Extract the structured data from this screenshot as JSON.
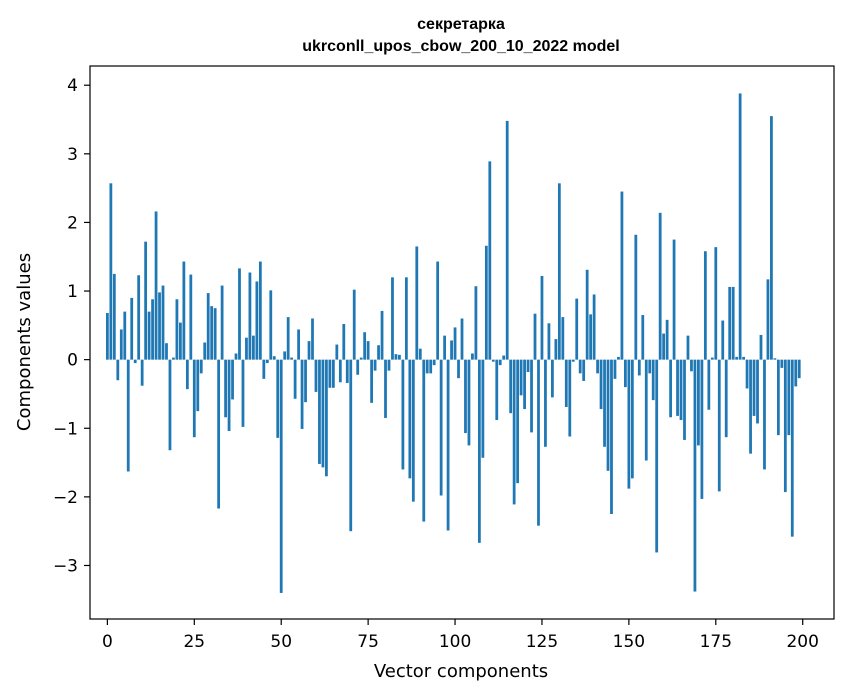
{
  "chart_data": {
    "type": "bar",
    "title": "секретарка",
    "subtitle": "ukrconll_upos_cbow_200_10_2022 model",
    "xlabel": "Vector components",
    "ylabel": "Components values",
    "xlim": [
      -5,
      209
    ],
    "ylim": [
      -3.78,
      4.28
    ],
    "xticks": [
      0,
      25,
      50,
      75,
      100,
      125,
      150,
      175,
      200
    ],
    "yticks": [
      -3,
      -2,
      -1,
      0,
      1,
      2,
      3,
      4
    ],
    "ytick_labels": [
      "−3",
      "−2",
      "−1",
      "0",
      "1",
      "2",
      "3",
      "4"
    ],
    "bar_color": "#1f77b4",
    "values": [
      0.68,
      2.57,
      1.25,
      -0.3,
      0.44,
      0.7,
      -1.63,
      0.9,
      -0.05,
      1.23,
      -0.38,
      1.72,
      0.7,
      0.88,
      2.16,
      0.98,
      1.08,
      0.24,
      -1.32,
      0.03,
      0.88,
      0.54,
      1.43,
      -0.43,
      1.24,
      -1.13,
      -0.75,
      -0.2,
      0.25,
      0.97,
      0.78,
      0.75,
      -2.17,
      1.08,
      -0.84,
      -1.04,
      -0.58,
      0.09,
      1.33,
      -0.98,
      0.32,
      1.27,
      0.35,
      1.14,
      1.43,
      -0.28,
      -0.05,
      1.01,
      0.05,
      -1.14,
      -3.4,
      0.12,
      0.62,
      0.03,
      -0.57,
      0.44,
      -1.01,
      -0.62,
      0.27,
      0.6,
      -0.47,
      -1.52,
      -1.57,
      -1.7,
      -0.41,
      -0.41,
      0.22,
      -0.33,
      0.52,
      -0.34,
      -2.5,
      1.02,
      -0.22,
      0.03,
      0.4,
      0.27,
      -0.63,
      -0.16,
      0.21,
      0.71,
      -0.85,
      -0.16,
      1.2,
      0.08,
      0.07,
      -1.6,
      1.2,
      -1.73,
      -2.07,
      1.65,
      0.16,
      -2.36,
      -0.2,
      -0.2,
      -0.08,
      1.43,
      -1.98,
      0.35,
      -2.49,
      0.28,
      0.47,
      -0.27,
      0.6,
      -1.07,
      -1.25,
      0.09,
      1.07,
      -2.67,
      -1.43,
      1.66,
      2.89,
      -0.03,
      -0.88,
      -0.08,
      0.06,
      3.48,
      -0.78,
      -2.11,
      -1.8,
      -0.52,
      -0.72,
      -0.18,
      -1.06,
      0.67,
      -2.42,
      1.22,
      -1.27,
      0.53,
      -0.55,
      0.3,
      2.57,
      0.62,
      -0.69,
      -1.12,
      -0.03,
      0.89,
      -0.2,
      -0.31,
      1.31,
      0.66,
      0.95,
      -0.2,
      -0.72,
      -1.27,
      -1.62,
      -2.25,
      -0.28,
      0.04,
      2.45,
      -0.4,
      -1.88,
      -1.73,
      1.82,
      -0.23,
      0.65,
      -1.47,
      -0.2,
      -0.59,
      -2.81,
      2.14,
      0.38,
      0.58,
      -0.84,
      1.75,
      -0.82,
      -0.88,
      -1.17,
      0.35,
      -0.17,
      -3.38,
      -1.25,
      -2.03,
      1.58,
      -0.73,
      0.03,
      1.64,
      -1.92,
      0.57,
      -1.13,
      1.06,
      1.06,
      0.04,
      3.88,
      0.04,
      -0.42,
      -1.37,
      -0.82,
      -0.93,
      0.36,
      -1.6,
      1.17,
      3.55,
      0.02,
      -1.1,
      -0.12,
      -1.93,
      -1.1,
      -2.58,
      -0.39,
      -0.27
    ]
  }
}
